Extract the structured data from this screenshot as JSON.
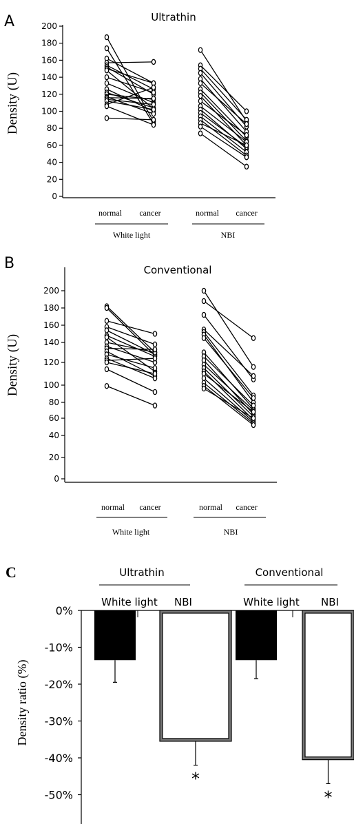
{
  "chart_data": [
    {
      "panel_letter": "A",
      "type": "line",
      "title": "Ultrathin",
      "ylabel": "Density (U)",
      "yticks": [
        0,
        20,
        40,
        60,
        80,
        100,
        120,
        140,
        160,
        180,
        200
      ],
      "ylim": [
        0,
        200
      ],
      "groups": [
        {
          "name": "White light",
          "categories": [
            "normal",
            "cancer"
          ],
          "pairs": [
            [
              187,
              88
            ],
            [
              174,
              85
            ],
            [
              162,
              133
            ],
            [
              157,
              158
            ],
            [
              154,
              126
            ],
            [
              152,
              120
            ],
            [
              150,
              133
            ],
            [
              148,
              103
            ],
            [
              140,
              122
            ],
            [
              133,
              110
            ],
            [
              126,
              100
            ],
            [
              122,
              104
            ],
            [
              120,
              114
            ],
            [
              117,
              97
            ],
            [
              116,
              115
            ],
            [
              114,
              108
            ],
            [
              112,
              102
            ],
            [
              108,
              128
            ],
            [
              106,
              84
            ],
            [
              92,
              90
            ]
          ]
        },
        {
          "name": "NBI",
          "categories": [
            "normal",
            "cancer"
          ],
          "pairs": [
            [
              172,
              88
            ],
            [
              154,
              100
            ],
            [
              150,
              90
            ],
            [
              145,
              82
            ],
            [
              138,
              76
            ],
            [
              133,
              85
            ],
            [
              126,
              70
            ],
            [
              122,
              65
            ],
            [
              118,
              60
            ],
            [
              112,
              72
            ],
            [
              106,
              64
            ],
            [
              102,
              56
            ],
            [
              98,
              58
            ],
            [
              94,
              52
            ],
            [
              90,
              48
            ],
            [
              86,
              60
            ],
            [
              82,
              46
            ],
            [
              74,
              35
            ]
          ]
        }
      ]
    },
    {
      "panel_letter": "B",
      "type": "line",
      "title": "Conventional",
      "ylabel": "Density (U)",
      "yticks": [
        0,
        20,
        40,
        60,
        80,
        100,
        120,
        140,
        160,
        180,
        200
      ],
      "ylim": [
        0,
        200
      ],
      "groups": [
        {
          "name": "White light",
          "categories": [
            "normal",
            "cancer"
          ],
          "pairs": [
            [
              182,
              130
            ],
            [
              180,
              127
            ],
            [
              165,
              150
            ],
            [
              158,
              138
            ],
            [
              154,
              128
            ],
            [
              148,
              126
            ],
            [
              146,
              112
            ],
            [
              140,
              130
            ],
            [
              136,
              120
            ],
            [
              134,
              133
            ],
            [
              131,
              108
            ],
            [
              128,
              115
            ],
            [
              124,
              106
            ],
            [
              122,
              124
            ],
            [
              120,
              110
            ],
            [
              114,
              92
            ],
            [
              99,
              76
            ]
          ]
        },
        {
          "name": "NBI",
          "categories": [
            "normal",
            "cancer"
          ],
          "pairs": [
            [
              200,
              116
            ],
            [
              188,
              145
            ],
            [
              172,
              105
            ],
            [
              155,
              108
            ],
            [
              152,
              88
            ],
            [
              149,
              80
            ],
            [
              145,
              85
            ],
            [
              130,
              72
            ],
            [
              126,
              76
            ],
            [
              122,
              65
            ],
            [
              118,
              70
            ],
            [
              115,
              62
            ],
            [
              112,
              58
            ],
            [
              110,
              68
            ],
            [
              106,
              56
            ],
            [
              102,
              54
            ],
            [
              99,
              52
            ],
            [
              96,
              60
            ]
          ]
        }
      ]
    },
    {
      "panel_letter": "C",
      "type": "bar",
      "ylabel": "Density ratio (%)",
      "yticks": [
        "0%",
        "-10%",
        "-20%",
        "-30%",
        "-40%",
        "-50%"
      ],
      "ytick_values": [
        0,
        -10,
        -20,
        -30,
        -40,
        -50
      ],
      "ylim": [
        -50,
        0
      ],
      "groups": [
        {
          "name": "Ultrathin",
          "categories": [
            "White light",
            "NBI"
          ]
        },
        {
          "name": "Conventional",
          "categories": [
            "White light",
            "NBI"
          ]
        }
      ],
      "bars": [
        {
          "group": "Ultrathin",
          "category": "White light",
          "value": -13.5,
          "error": 6.0,
          "style": "filled",
          "significance": ""
        },
        {
          "group": "Ultrathin",
          "category": "NBI",
          "value": -35.5,
          "error": 6.5,
          "style": "hollow",
          "significance": "*"
        },
        {
          "group": "Conventional",
          "category": "White light",
          "value": -13.5,
          "error": 5.0,
          "style": "filled",
          "significance": ""
        },
        {
          "group": "Conventional",
          "category": "NBI",
          "value": -40.5,
          "error": 6.5,
          "style": "hollow",
          "significance": "*"
        }
      ]
    }
  ]
}
